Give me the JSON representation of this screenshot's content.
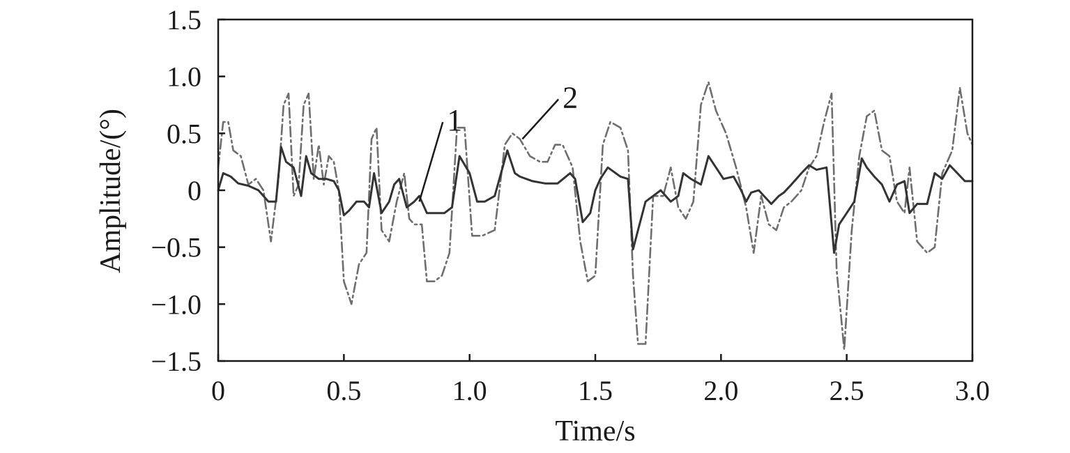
{
  "chart_data": {
    "type": "line",
    "xlabel": "Time/s",
    "ylabel": "Amplitude/(°)",
    "xlim": [
      0,
      3.0
    ],
    "ylim": [
      -1.5,
      1.5
    ],
    "x_ticks": [
      "0",
      "0.5",
      "1.0",
      "1.5",
      "2.0",
      "2.5",
      "3.0"
    ],
    "y_ticks": [
      "1.5",
      "1.0",
      "0.5",
      "0",
      "−0.5",
      "−1.0",
      "−1.5"
    ],
    "grid": false,
    "series": [
      {
        "name": "1",
        "style": "solid",
        "color": "#333333",
        "x": [
          0,
          0.02,
          0.05,
          0.08,
          0.12,
          0.16,
          0.2,
          0.23,
          0.25,
          0.27,
          0.3,
          0.33,
          0.35,
          0.37,
          0.4,
          0.43,
          0.46,
          0.48,
          0.5,
          0.52,
          0.55,
          0.58,
          0.6,
          0.62,
          0.65,
          0.68,
          0.7,
          0.72,
          0.75,
          0.78,
          0.8,
          0.83,
          0.86,
          0.9,
          0.93,
          0.96,
          1.0,
          1.03,
          1.06,
          1.1,
          1.15,
          1.18,
          1.2,
          1.25,
          1.3,
          1.35,
          1.4,
          1.42,
          1.45,
          1.48,
          1.5,
          1.52,
          1.55,
          1.6,
          1.63,
          1.65,
          1.67,
          1.7,
          1.73,
          1.76,
          1.8,
          1.83,
          1.85,
          1.88,
          1.92,
          1.95,
          1.98,
          2.01,
          2.05,
          2.08,
          2.1,
          2.12,
          2.15,
          2.2,
          2.23,
          2.25,
          2.28,
          2.32,
          2.35,
          2.38,
          2.42,
          2.45,
          2.47,
          2.5,
          2.53,
          2.56,
          2.58,
          2.61,
          2.64,
          2.67,
          2.7,
          2.73,
          2.75,
          2.78,
          2.82,
          2.85,
          2.88,
          2.91,
          2.94,
          2.97,
          3.0
        ],
        "y": [
          0.0,
          0.15,
          0.12,
          0.06,
          0.04,
          0.0,
          -0.1,
          -0.1,
          0.38,
          0.25,
          0.2,
          -0.05,
          0.3,
          0.15,
          0.1,
          0.1,
          0.08,
          0.0,
          -0.22,
          -0.18,
          -0.1,
          -0.1,
          -0.15,
          0.15,
          -0.2,
          -0.1,
          0.05,
          0.1,
          -0.15,
          -0.1,
          -0.05,
          -0.2,
          -0.2,
          -0.2,
          -0.15,
          0.3,
          0.15,
          -0.1,
          -0.1,
          -0.05,
          0.35,
          0.15,
          0.12,
          0.08,
          0.06,
          0.06,
          0.15,
          0.1,
          -0.28,
          -0.2,
          0.0,
          0.1,
          0.2,
          0.12,
          0.1,
          -0.52,
          -0.35,
          -0.1,
          -0.05,
          0.0,
          -0.1,
          -0.05,
          0.15,
          0.1,
          0.05,
          0.3,
          0.2,
          0.1,
          0.12,
          0.0,
          -0.1,
          -0.02,
          0.0,
          -0.12,
          -0.05,
          -0.02,
          0.05,
          0.15,
          0.22,
          0.18,
          0.2,
          -0.55,
          -0.3,
          -0.2,
          -0.1,
          0.28,
          0.2,
          0.12,
          0.05,
          -0.1,
          0.05,
          0.08,
          -0.2,
          -0.12,
          -0.12,
          0.15,
          0.1,
          0.22,
          0.15,
          0.08,
          0.08
        ]
      },
      {
        "name": "2",
        "style": "dash-dot",
        "color": "#6e6e6e",
        "x": [
          0,
          0.02,
          0.04,
          0.06,
          0.09,
          0.12,
          0.15,
          0.18,
          0.21,
          0.24,
          0.26,
          0.28,
          0.3,
          0.32,
          0.34,
          0.36,
          0.38,
          0.4,
          0.42,
          0.44,
          0.46,
          0.48,
          0.5,
          0.53,
          0.56,
          0.59,
          0.61,
          0.63,
          0.65,
          0.68,
          0.71,
          0.74,
          0.76,
          0.78,
          0.81,
          0.83,
          0.86,
          0.89,
          0.92,
          0.95,
          0.98,
          1.01,
          1.05,
          1.1,
          1.14,
          1.17,
          1.2,
          1.24,
          1.28,
          1.31,
          1.34,
          1.37,
          1.41,
          1.44,
          1.47,
          1.5,
          1.53,
          1.56,
          1.6,
          1.63,
          1.65,
          1.67,
          1.7,
          1.73,
          1.77,
          1.8,
          1.83,
          1.86,
          1.89,
          1.92,
          1.95,
          1.98,
          2.02,
          2.06,
          2.1,
          2.13,
          2.16,
          2.19,
          2.22,
          2.25,
          2.28,
          2.32,
          2.35,
          2.38,
          2.41,
          2.44,
          2.46,
          2.49,
          2.52,
          2.55,
          2.58,
          2.61,
          2.64,
          2.67,
          2.7,
          2.73,
          2.75,
          2.78,
          2.82,
          2.85,
          2.88,
          2.92,
          2.95,
          2.98,
          3.0
        ],
        "y": [
          0.2,
          0.6,
          0.6,
          0.35,
          0.3,
          0.05,
          0.1,
          0.0,
          -0.45,
          0.1,
          0.75,
          0.85,
          -0.05,
          0.05,
          0.75,
          0.85,
          0.1,
          0.4,
          0.05,
          0.3,
          0.25,
          0.0,
          -0.8,
          -1.0,
          -0.65,
          -0.55,
          0.45,
          0.55,
          -0.35,
          -0.45,
          -0.1,
          0.15,
          -0.25,
          -0.3,
          -0.3,
          -0.8,
          -0.8,
          -0.75,
          -0.55,
          0.55,
          0.55,
          -0.4,
          -0.4,
          -0.35,
          0.4,
          0.5,
          0.45,
          0.3,
          0.25,
          0.25,
          0.4,
          0.4,
          0.2,
          -0.45,
          -0.8,
          -0.75,
          0.4,
          0.6,
          0.55,
          0.35,
          -0.75,
          -1.35,
          -1.35,
          -0.05,
          -0.05,
          0.2,
          -0.15,
          -0.25,
          -0.1,
          0.75,
          0.95,
          0.7,
          0.5,
          0.2,
          -0.15,
          -0.55,
          -0.05,
          -0.3,
          -0.35,
          -0.15,
          -0.1,
          0.0,
          0.2,
          0.3,
          0.6,
          0.85,
          -0.7,
          -1.4,
          -0.35,
          0.3,
          0.65,
          0.7,
          0.35,
          0.3,
          -0.1,
          -0.2,
          0.2,
          -0.45,
          -0.55,
          -0.5,
          0.15,
          0.35,
          0.9,
          0.5,
          0.4
        ]
      }
    ],
    "annotations": [
      {
        "text": "1",
        "series": "1",
        "text_at": [
          0.91,
          0.55
        ],
        "point_at": [
          0.8,
          -0.1
        ]
      },
      {
        "text": "2",
        "series": "2",
        "text_at": [
          1.37,
          0.75
        ],
        "point_at": [
          1.21,
          0.45
        ]
      }
    ]
  }
}
